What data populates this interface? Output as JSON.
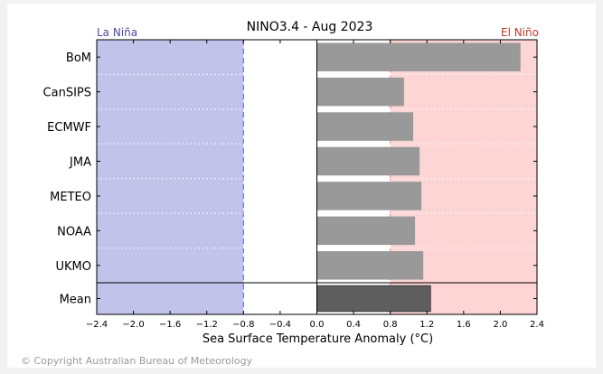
{
  "copyright": "© Copyright Australian Bureau of Meteorology",
  "chart_data": {
    "type": "bar",
    "orientation": "horizontal",
    "title": "NINO3.4 - Aug 2023",
    "xlabel": "Sea Surface Temperature Anomaly (°C)",
    "ylabel": "",
    "xlim": [
      -2.4,
      2.4
    ],
    "xticks": [
      "−2.4",
      "−2.0",
      "−1.6",
      "−1.2",
      "−0.8",
      "−0.4",
      "0.0",
      "0.4",
      "0.8",
      "1.2",
      "1.6",
      "2.0",
      "2.4"
    ],
    "categories": [
      "BoM",
      "CanSIPS",
      "ECMWF",
      "JMA",
      "METEO",
      "NOAA",
      "UKMO",
      "Mean"
    ],
    "values": [
      2.22,
      0.95,
      1.05,
      1.12,
      1.14,
      1.07,
      1.16,
      1.24
    ],
    "la_nina": {
      "label": "La Niña",
      "threshold": -0.8,
      "color": "#c2c3eb",
      "label_color": "#4b4ba0"
    },
    "el_nino": {
      "label": "El Niño",
      "threshold": 0.8,
      "color": "#fdd5d5",
      "label_color": "#c0392b"
    },
    "bar_color": "#999999",
    "mean_bar_color": "#5e5e5e",
    "grid": false
  }
}
